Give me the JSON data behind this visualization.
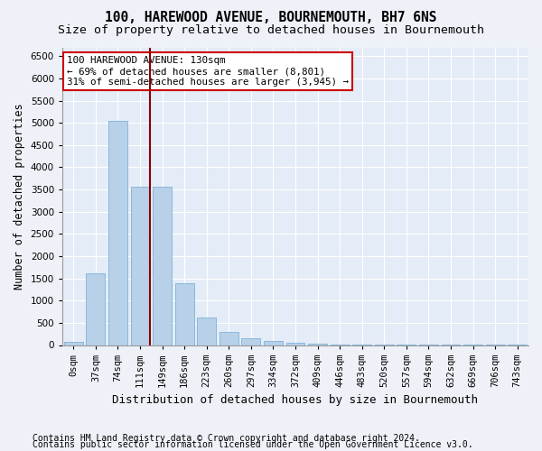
{
  "title1": "100, HAREWOOD AVENUE, BOURNEMOUTH, BH7 6NS",
  "title2": "Size of property relative to detached houses in Bournemouth",
  "xlabel": "Distribution of detached houses by size in Bournemouth",
  "ylabel": "Number of detached properties",
  "categories": [
    "0sqm",
    "37sqm",
    "74sqm",
    "111sqm",
    "149sqm",
    "186sqm",
    "223sqm",
    "260sqm",
    "297sqm",
    "334sqm",
    "372sqm",
    "409sqm",
    "446sqm",
    "483sqm",
    "520sqm",
    "557sqm",
    "594sqm",
    "632sqm",
    "669sqm",
    "706sqm",
    "743sqm"
  ],
  "bar_values": [
    70,
    1620,
    5050,
    3560,
    3560,
    1400,
    610,
    295,
    145,
    95,
    55,
    38,
    18,
    10,
    6,
    4,
    2,
    2,
    1,
    1,
    1
  ],
  "bar_color": "#b8d0e8",
  "bar_edgecolor": "#6aaad4",
  "vline_color": "#8B0000",
  "annotation_title": "100 HAREWOOD AVENUE: 130sqm",
  "annotation_line2": "← 69% of detached houses are smaller (8,801)",
  "annotation_line3": "31% of semi-detached houses are larger (3,945) →",
  "annotation_box_facecolor": "#ffffff",
  "annotation_box_edgecolor": "#cc0000",
  "ylim": [
    0,
    6700
  ],
  "yticks": [
    0,
    500,
    1000,
    1500,
    2000,
    2500,
    3000,
    3500,
    4000,
    4500,
    5000,
    5500,
    6000,
    6500
  ],
  "footer1": "Contains HM Land Registry data © Crown copyright and database right 2024.",
  "footer2": "Contains public sector information licensed under the Open Government Licence v3.0.",
  "bg_color": "#eef2f8",
  "plot_bg_color": "#e4ecf7",
  "grid_color": "#ffffff",
  "title_fontsize": 10.5,
  "subtitle_fontsize": 9.5,
  "axis_label_fontsize": 8.5,
  "tick_fontsize": 7.5,
  "annotation_fontsize": 7.8,
  "footer_fontsize": 7.0
}
